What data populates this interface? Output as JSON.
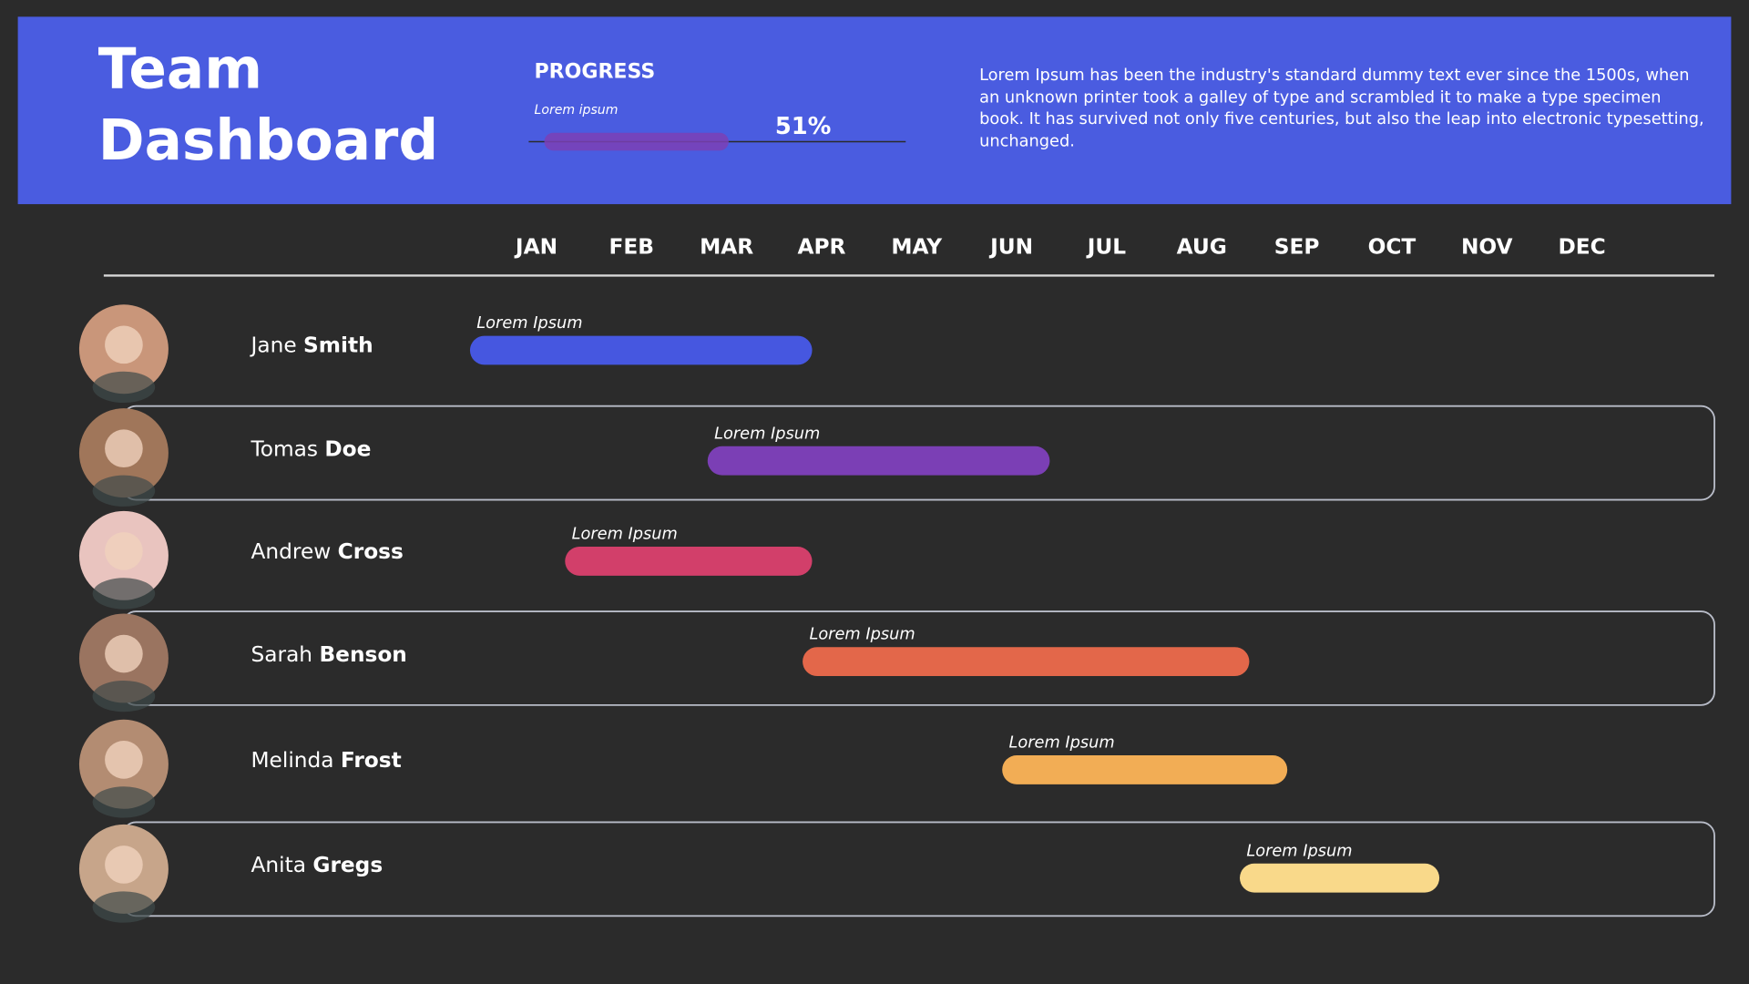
{
  "header": {
    "title": "Team Dashboard",
    "progress": {
      "heading": "PROGRESS",
      "label": "Lorem ipsum",
      "value": {
        "value": 51,
        "label": "51%"
      },
      "color": "#7b3fb5"
    },
    "description": "Lorem Ipsum has been the industry's standard dummy text ever since the 1500s, when an unknown printer took a galley of type and scrambled it to make a type specimen book. It has survived not only five centuries, but also the leap into electronic typesetting, unchanged."
  },
  "timeline": {
    "months": [
      "JAN",
      "FEB",
      "MAR",
      "APR",
      "MAY",
      "JUN",
      "JUL",
      "AUG",
      "SEP",
      "OCT",
      "NOV",
      "DEC"
    ],
    "rows": [
      {
        "first": "Jane",
        "last": "Smith",
        "task": "Lorem Ipsum",
        "start": 0.3,
        "end": 3.9,
        "color": "#4657e0"
      },
      {
        "first": "Tomas",
        "last": "Doe",
        "task": "Lorem Ipsum",
        "start": 2.8,
        "end": 6.4,
        "color": "#7b3fb5"
      },
      {
        "first": "Andrew",
        "last": "Cross",
        "task": "Lorem Ipsum",
        "start": 1.3,
        "end": 3.9,
        "color": "#d23f6a"
      },
      {
        "first": "Sarah",
        "last": "Benson",
        "task": "Lorem Ipsum",
        "start": 3.8,
        "end": 8.5,
        "color": "#e3674a"
      },
      {
        "first": "Melinda",
        "last": "Frost",
        "task": "Lorem Ipsum",
        "start": 5.9,
        "end": 8.9,
        "color": "#f2ad55"
      },
      {
        "first": "Anita",
        "last": "Gregs",
        "task": "Lorem Ipsum",
        "start": 8.4,
        "end": 10.5,
        "color": "#f9d98a"
      }
    ]
  }
}
